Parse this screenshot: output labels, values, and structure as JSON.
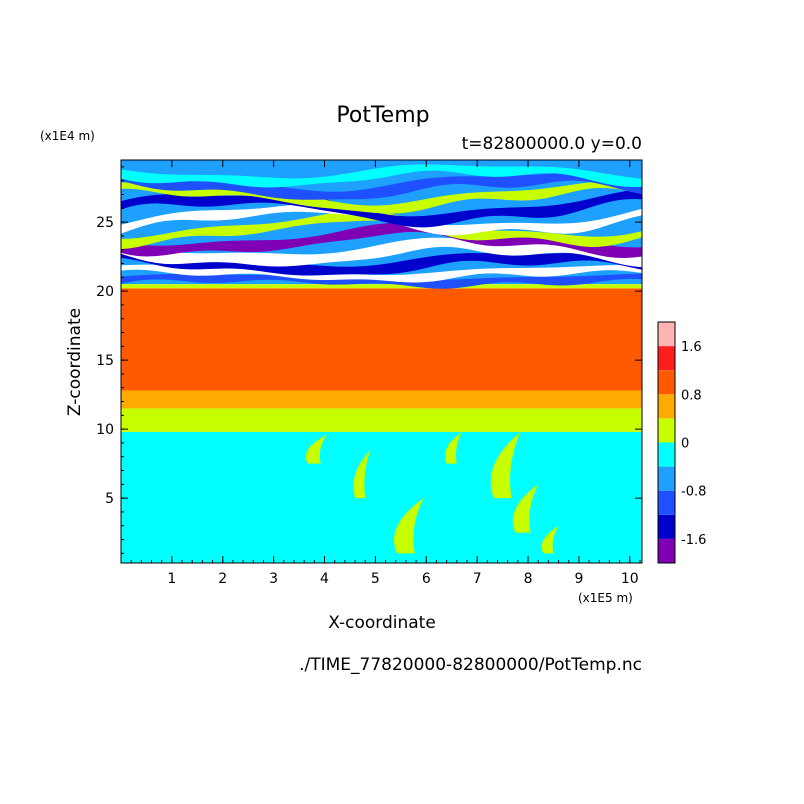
{
  "chart_data": {
    "type": "heatmap",
    "title": "PotTemp",
    "subtitle": "t=82800000.0 y=0.0",
    "xlabel": "X-coordinate",
    "ylabel": "Z-coordinate",
    "x_unit": "(x1E5 m)",
    "y_unit": "(x1E4 m)",
    "footer": "./TIME_77820000-82800000/PotTemp.nc",
    "xlim": [
      0,
      10.24
    ],
    "ylim": [
      0.3,
      29.5
    ],
    "x_ticks": [
      1,
      2,
      3,
      4,
      5,
      6,
      7,
      8,
      9,
      10
    ],
    "y_ticks": [
      5,
      10,
      15,
      20,
      25
    ],
    "grid": false,
    "colorbar": {
      "position": "right",
      "levels": [
        -2.0,
        -1.6,
        -1.2,
        -0.8,
        -0.4,
        0,
        0.4,
        0.8,
        1.2,
        1.6,
        2.0
      ],
      "colors": [
        "#7f00b4",
        "#0000cc",
        "#1e50ff",
        "#1ea0ff",
        "#00ffff",
        "#c8ff00",
        "#ffaa00",
        "#ff5a00",
        "#ff1e1e",
        "#ffb4b4"
      ],
      "tick_labels": [
        {
          "value": 1.6,
          "label": "1.6"
        },
        {
          "value": 0.8,
          "label": "0.8"
        },
        {
          "value": 0,
          "label": "0"
        },
        {
          "value": -0.8,
          "label": "-0.8"
        },
        {
          "value": -1.6,
          "label": "-1.6"
        }
      ]
    },
    "bands": [
      {
        "z0": 0.3,
        "z1": 9.8,
        "value": -0.2
      },
      {
        "z0": 9.8,
        "z1": 11.5,
        "value": 0.2
      },
      {
        "z0": 11.5,
        "z1": 12.8,
        "value": 0.6
      },
      {
        "z0": 12.8,
        "z1": 20.2,
        "value": 1.0
      },
      {
        "z0": 20.2,
        "z1": 20.5,
        "value": 0.2
      }
    ],
    "layers": [
      {
        "z": 20.8,
        "thickness": 0.5,
        "amp": 0.2,
        "value": -1.0
      },
      {
        "z": 21.3,
        "thickness": 0.5,
        "amp": 0.3,
        "value": 2.2
      },
      {
        "z": 22.0,
        "thickness": 0.7,
        "amp": 0.5,
        "value": -1.4
      },
      {
        "z": 22.8,
        "thickness": 0.8,
        "amp": 0.6,
        "value": 2.2
      },
      {
        "z": 23.7,
        "thickness": 0.7,
        "amp": 0.7,
        "value": -1.7
      },
      {
        "z": 24.5,
        "thickness": 0.6,
        "amp": 0.8,
        "value": 0.2
      },
      {
        "z": 25.2,
        "thickness": 0.6,
        "amp": 0.8,
        "value": 2.2
      },
      {
        "z": 26.0,
        "thickness": 0.7,
        "amp": 0.8,
        "value": -1.4
      },
      {
        "z": 26.8,
        "thickness": 0.6,
        "amp": 0.7,
        "value": 0.2
      },
      {
        "z": 27.6,
        "thickness": 0.7,
        "amp": 0.6,
        "value": -1.0
      },
      {
        "z": 28.4,
        "thickness": 0.6,
        "amp": 0.5,
        "value": -0.2
      }
    ],
    "upper_background_value": -0.6,
    "plumes": [
      {
        "x": 3.8,
        "z0": 7.5,
        "z1": 9.6,
        "width": 0.25,
        "value": 0.2
      },
      {
        "x": 4.7,
        "z0": 5.0,
        "z1": 8.5,
        "width": 0.2,
        "value": 0.2
      },
      {
        "x": 5.6,
        "z0": 1.0,
        "z1": 5.0,
        "width": 0.35,
        "value": 0.2
      },
      {
        "x": 6.5,
        "z0": 7.5,
        "z1": 9.8,
        "width": 0.2,
        "value": 0.2
      },
      {
        "x": 7.5,
        "z0": 5.0,
        "z1": 9.8,
        "width": 0.35,
        "value": 0.2
      },
      {
        "x": 7.9,
        "z0": 2.5,
        "z1": 6.0,
        "width": 0.3,
        "value": 0.2
      },
      {
        "x": 8.4,
        "z0": 1.0,
        "z1": 3.0,
        "width": 0.2,
        "value": 0.2
      }
    ]
  }
}
